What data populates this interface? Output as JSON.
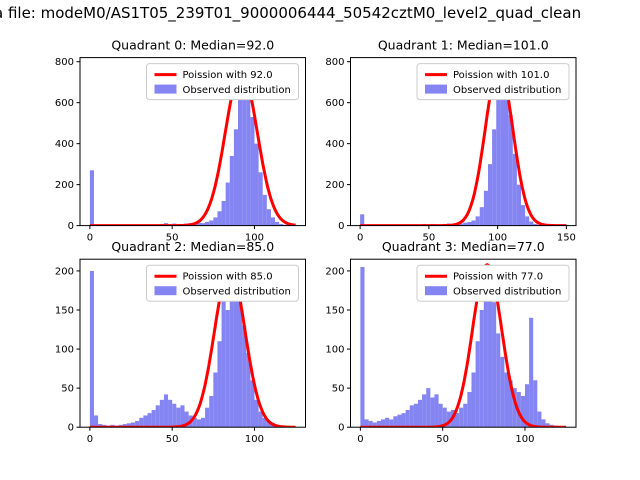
{
  "figure_title": "a file: modeM0/AS1T05_239T01_9000006444_50542cztM0_level2_quad_clean",
  "colors": {
    "curve": "#ff0000",
    "bars": "#8484f2",
    "legend_border": "#cccccc",
    "spine": "#000000"
  },
  "chart_data": {
    "type": "histogram",
    "layout": "2x2-grid",
    "charts": [
      {
        "title": "Quadrant 0: Median=92.0",
        "median": 92.0,
        "legend": [
          "Poission with 92.0",
          "Observed distribution"
        ],
        "xlim": [
          -6,
          131
        ],
        "ylim": [
          0,
          820
        ],
        "xticks": [
          0,
          50,
          100
        ],
        "yticks": [
          0,
          200,
          400,
          600,
          800
        ],
        "bin_start": 0,
        "bin_width": 2.5,
        "bar_heights": [
          270,
          0,
          0,
          0,
          0,
          0,
          0,
          0,
          0,
          0,
          0,
          0,
          0,
          0,
          0,
          0,
          5,
          8,
          12,
          6,
          10,
          8,
          6,
          10,
          12,
          10,
          14,
          12,
          18,
          25,
          40,
          70,
          120,
          210,
          340,
          470,
          620,
          745,
          660,
          530,
          400,
          260,
          150,
          80,
          40,
          18,
          8,
          4,
          2,
          0
        ],
        "curve": {
          "mean": 92,
          "sigma": 9.6,
          "peak": 760
        }
      },
      {
        "title": "Quadrant 1: Median=101.0",
        "median": 101.0,
        "legend": [
          "Poission with 101.0",
          "Observed distribution"
        ],
        "xlim": [
          -7,
          157
        ],
        "ylim": [
          0,
          820
        ],
        "xticks": [
          0,
          50,
          100,
          150
        ],
        "yticks": [
          0,
          200,
          400,
          600,
          800
        ],
        "bin_start": 0,
        "bin_width": 3,
        "bar_heights": [
          55,
          0,
          0,
          0,
          0,
          0,
          0,
          0,
          0,
          0,
          0,
          0,
          0,
          0,
          5,
          8,
          6,
          8,
          6,
          5,
          8,
          10,
          8,
          12,
          10,
          14,
          18,
          25,
          45,
          90,
          170,
          300,
          470,
          640,
          775,
          700,
          540,
          350,
          200,
          100,
          45,
          20,
          8,
          3,
          0,
          0,
          0,
          0,
          0,
          0
        ],
        "curve": {
          "mean": 101,
          "sigma": 10.0,
          "peak": 780
        }
      },
      {
        "title": "Quadrant 2: Median=85.0",
        "median": 85.0,
        "legend": [
          "Poission with 85.0",
          "Observed distribution"
        ],
        "xlim": [
          -6,
          131
        ],
        "ylim": [
          0,
          215
        ],
        "xticks": [
          0,
          50,
          100
        ],
        "yticks": [
          0,
          50,
          100,
          150,
          200
        ],
        "bin_start": 0,
        "bin_width": 2.5,
        "bar_heights": [
          200,
          15,
          4,
          3,
          2,
          3,
          2,
          3,
          4,
          5,
          6,
          8,
          12,
          15,
          18,
          22,
          28,
          35,
          42,
          35,
          30,
          25,
          28,
          20,
          15,
          12,
          10,
          12,
          25,
          40,
          70,
          110,
          185,
          150,
          200,
          175,
          190,
          130,
          95,
          60,
          35,
          20,
          12,
          8,
          5,
          3,
          2,
          1,
          0,
          0
        ],
        "curve": {
          "mean": 85,
          "sigma": 9.2,
          "peak": 205
        }
      },
      {
        "title": "Quadrant 3: Median=77.0",
        "median": 77.0,
        "legend": [
          "Poission with 77.0",
          "Observed distribution"
        ],
        "xlim": [
          -6,
          131
        ],
        "ylim": [
          0,
          215
        ],
        "xticks": [
          0,
          50,
          100
        ],
        "yticks": [
          0,
          50,
          100,
          150,
          200
        ],
        "bin_start": 0,
        "bin_width": 2.5,
        "bar_heights": [
          205,
          10,
          8,
          6,
          8,
          10,
          12,
          10,
          14,
          16,
          18,
          22,
          28,
          30,
          35,
          42,
          50,
          38,
          42,
          30,
          25,
          20,
          22,
          18,
          25,
          30,
          45,
          70,
          110,
          150,
          205,
          185,
          160,
          120,
          90,
          70,
          60,
          50,
          45,
          40,
          55,
          140,
          60,
          20,
          10,
          5,
          3,
          2,
          1,
          0
        ],
        "curve": {
          "mean": 77,
          "sigma": 8.8,
          "peak": 208
        }
      }
    ]
  }
}
